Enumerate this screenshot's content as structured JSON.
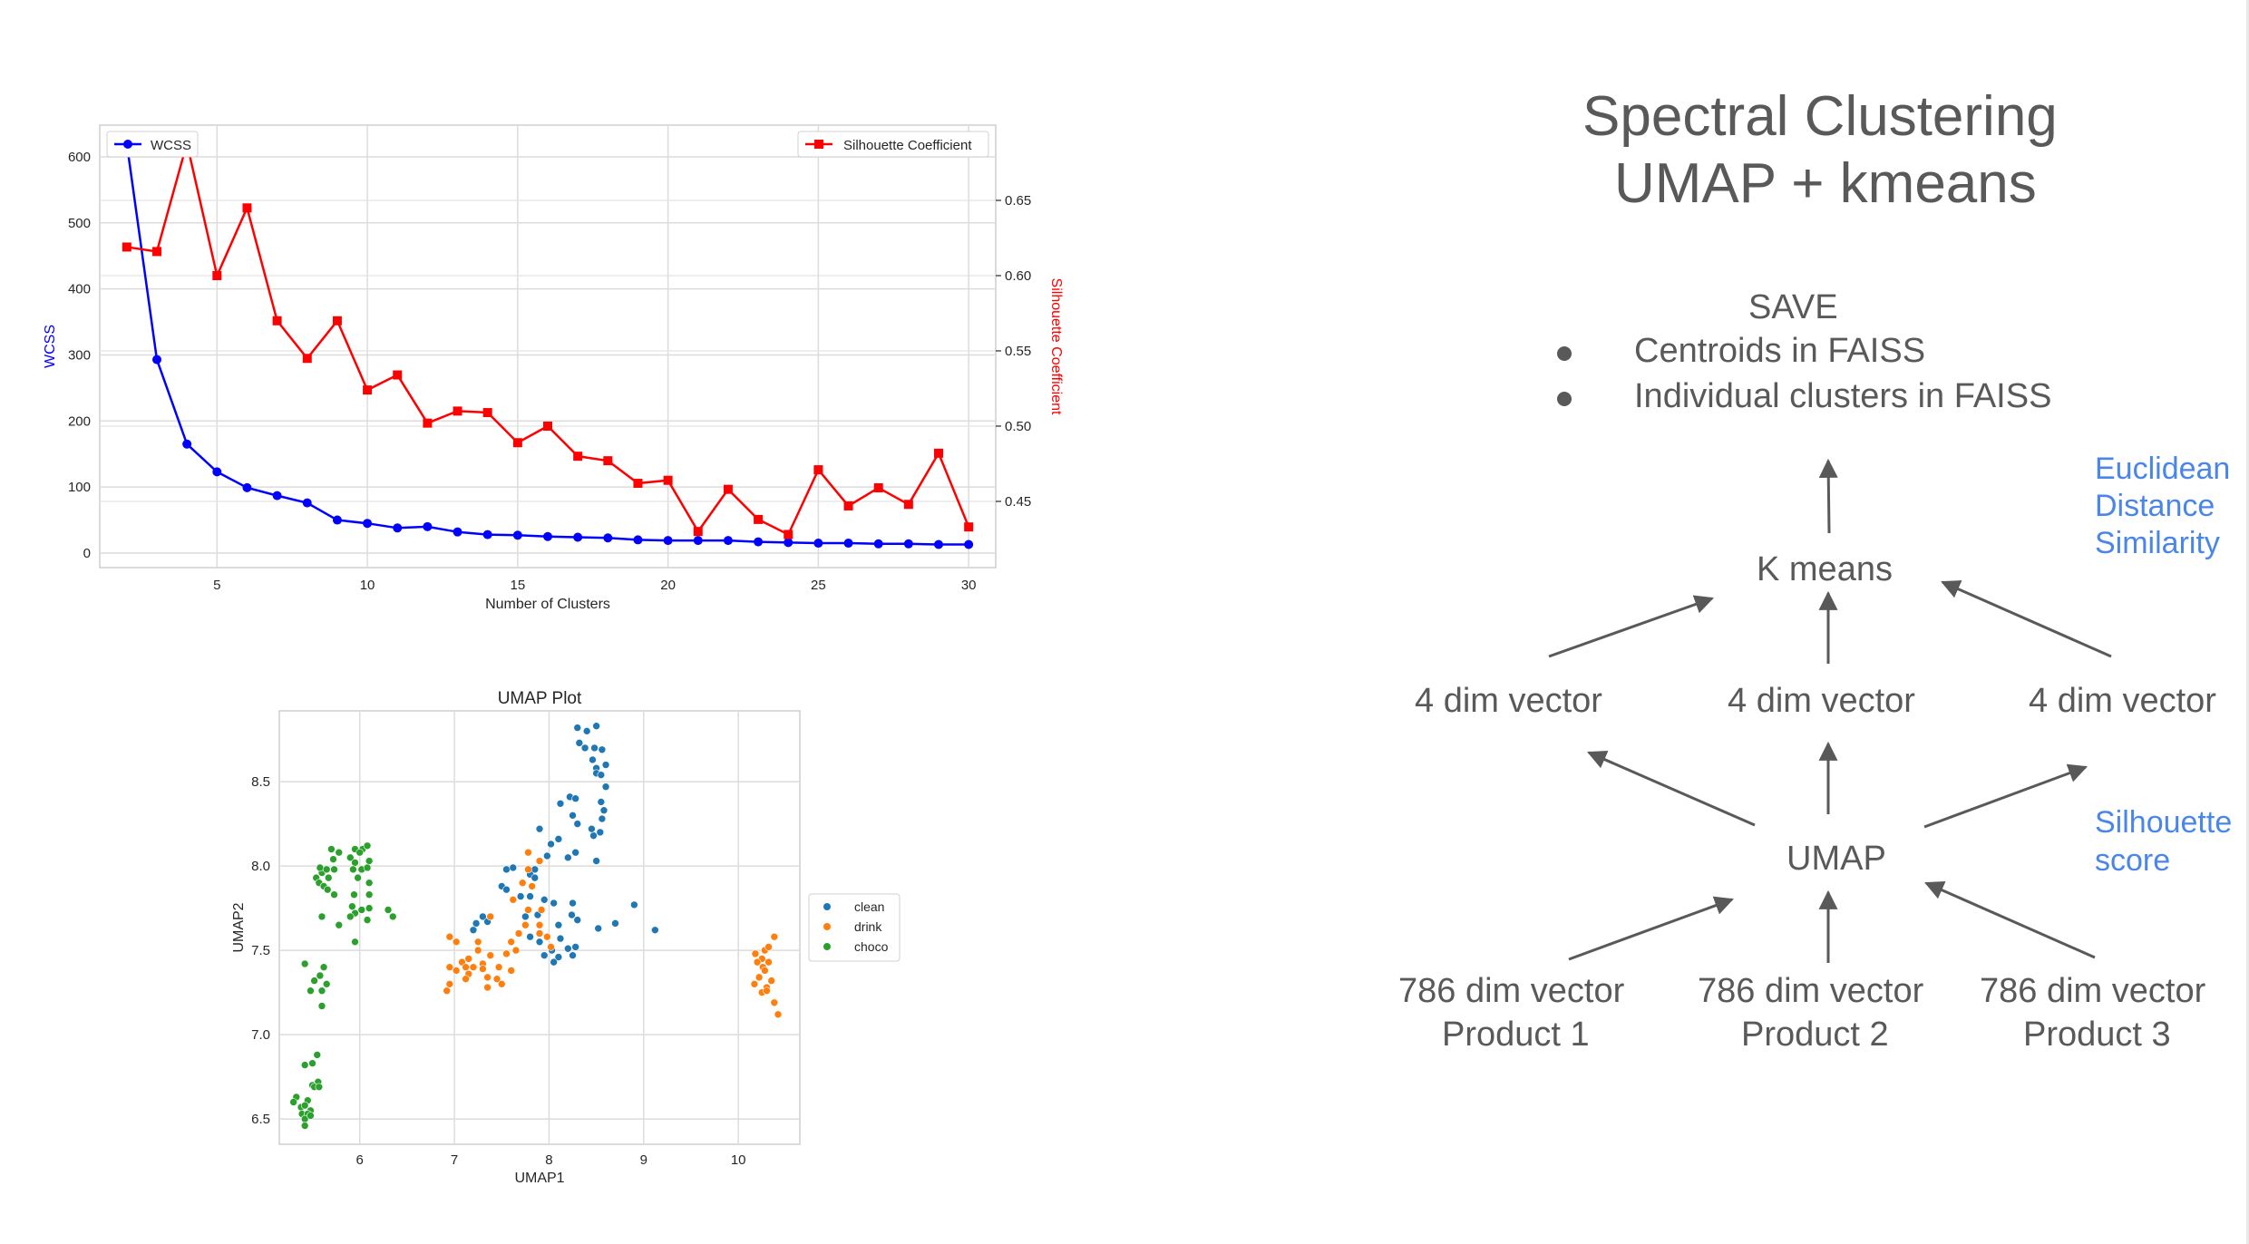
{
  "chart_data": [
    {
      "type": "line",
      "xlabel": "Number of Clusters",
      "ylabel": "WCSS",
      "ylabel_right": "Silhouette Coefficient",
      "xlim": [
        1.1,
        30.9
      ],
      "ylim": [
        -22,
        648
      ],
      "ylim_right": [
        0.406,
        0.7
      ],
      "x_ticks": [
        5,
        10,
        15,
        20,
        25,
        30
      ],
      "y_ticks": [
        0,
        100,
        200,
        300,
        400,
        500,
        600
      ],
      "y_ticks_right": [
        0.45,
        0.5,
        0.55,
        0.6,
        0.65
      ],
      "grid": true,
      "series": [
        {
          "name": "WCSS",
          "axis": "left",
          "color": "#0000ff",
          "marker": "circle",
          "legend_position": "upper-left",
          "x": [
            2,
            3,
            4,
            5,
            6,
            7,
            8,
            9,
            10,
            11,
            12,
            13,
            14,
            15,
            16,
            17,
            18,
            19,
            20,
            21,
            22,
            23,
            24,
            25,
            26,
            27,
            28,
            29,
            30
          ],
          "values": [
            620,
            293,
            165,
            123,
            99,
            87,
            76,
            50,
            45,
            38,
            40,
            32,
            28,
            27,
            25,
            24,
            23,
            20,
            19,
            19,
            19,
            17,
            16,
            15,
            15,
            14,
            14,
            13,
            13
          ]
        },
        {
          "name": "Silhouette Coefficient",
          "axis": "right",
          "color": "#ff0000",
          "marker": "square",
          "legend_position": "upper-right",
          "x": [
            2,
            3,
            4,
            5,
            6,
            7,
            8,
            9,
            10,
            11,
            12,
            13,
            14,
            15,
            16,
            17,
            18,
            19,
            20,
            21,
            22,
            23,
            24,
            25,
            26,
            27,
            28,
            29,
            30
          ],
          "values": [
            0.619,
            0.616,
            0.688,
            0.6,
            0.645,
            0.57,
            0.545,
            0.57,
            0.524,
            0.534,
            0.502,
            0.51,
            0.509,
            0.489,
            0.5,
            0.48,
            0.477,
            0.462,
            0.464,
            0.43,
            0.458,
            0.438,
            0.428,
            0.471,
            0.447,
            0.459,
            0.448,
            0.482,
            0.433
          ]
        }
      ]
    },
    {
      "type": "scatter",
      "title": "UMAP Plot",
      "xlabel": "UMAP1",
      "ylabel": "UMAP2",
      "xlim": [
        5.15,
        10.65
      ],
      "ylim": [
        6.35,
        8.92
      ],
      "x_ticks": [
        6,
        7,
        8,
        9,
        10
      ],
      "y_ticks": [
        6.5,
        7.0,
        7.5,
        8.0,
        8.5
      ],
      "grid": true,
      "legend_position": "right",
      "series": [
        {
          "name": "clean",
          "color": "#1f77b4",
          "points": [
            [
              8.3,
              8.82
            ],
            [
              8.4,
              8.8
            ],
            [
              8.5,
              8.83
            ],
            [
              8.32,
              8.73
            ],
            [
              8.38,
              8.7
            ],
            [
              8.48,
              8.7
            ],
            [
              8.56,
              8.69
            ],
            [
              8.46,
              8.63
            ],
            [
              8.5,
              8.58
            ],
            [
              8.6,
              8.6
            ],
            [
              8.5,
              8.55
            ],
            [
              8.55,
              8.54
            ],
            [
              8.6,
              8.47
            ],
            [
              8.55,
              8.38
            ],
            [
              8.58,
              8.33
            ],
            [
              8.56,
              8.28
            ],
            [
              8.22,
              8.41
            ],
            [
              8.28,
              8.4
            ],
            [
              8.12,
              8.37
            ],
            [
              8.25,
              8.3
            ],
            [
              8.3,
              8.25
            ],
            [
              8.47,
              8.18
            ],
            [
              8.45,
              8.22
            ],
            [
              8.54,
              8.2
            ],
            [
              8.02,
              8.13
            ],
            [
              8.1,
              8.16
            ],
            [
              7.9,
              8.22
            ],
            [
              8.2,
              8.05
            ],
            [
              8.28,
              8.08
            ],
            [
              8.5,
              8.03
            ],
            [
              7.98,
              8.06
            ],
            [
              7.85,
              7.98
            ],
            [
              7.55,
              7.98
            ],
            [
              7.62,
              7.99
            ],
            [
              7.8,
              7.95
            ],
            [
              7.85,
              7.93
            ],
            [
              7.5,
              7.88
            ],
            [
              7.55,
              7.86
            ],
            [
              7.7,
              7.82
            ],
            [
              7.8,
              7.82
            ],
            [
              7.95,
              7.8
            ],
            [
              8.05,
              7.78
            ],
            [
              8.25,
              7.78
            ],
            [
              7.75,
              7.7
            ],
            [
              7.88,
              7.71
            ],
            [
              8.1,
              7.65
            ],
            [
              8.24,
              7.71
            ],
            [
              8.3,
              7.68
            ],
            [
              8.52,
              7.63
            ],
            [
              7.3,
              7.7
            ],
            [
              7.23,
              7.66
            ],
            [
              7.35,
              7.67
            ],
            [
              7.2,
              7.62
            ],
            [
              7.8,
              7.58
            ],
            [
              7.9,
              7.55
            ],
            [
              8.12,
              7.57
            ],
            [
              8.03,
              7.5
            ],
            [
              7.95,
              7.47
            ],
            [
              8.2,
              7.51
            ],
            [
              8.28,
              7.52
            ],
            [
              8.1,
              7.46
            ],
            [
              8.05,
              7.43
            ],
            [
              8.25,
              7.47
            ],
            [
              8.7,
              7.66
            ],
            [
              8.9,
              7.77
            ],
            [
              9.12,
              7.62
            ]
          ]
        },
        {
          "name": "drink",
          "color": "#ff7f0e",
          "points": [
            [
              7.78,
              8.08
            ],
            [
              7.78,
              7.98
            ],
            [
              7.9,
              8.03
            ],
            [
              7.72,
              7.9
            ],
            [
              7.82,
              7.88
            ],
            [
              7.62,
              7.8
            ],
            [
              7.38,
              7.7
            ],
            [
              7.78,
              7.74
            ],
            [
              7.92,
              7.74
            ],
            [
              7.75,
              7.65
            ],
            [
              7.68,
              7.6
            ],
            [
              7.9,
              7.6
            ],
            [
              7.02,
              7.55
            ],
            [
              6.95,
              7.58
            ],
            [
              7.25,
              7.55
            ],
            [
              7.6,
              7.55
            ],
            [
              7.9,
              7.65
            ],
            [
              7.98,
              7.58
            ],
            [
              7.25,
              7.5
            ],
            [
              7.55,
              7.48
            ],
            [
              7.65,
              7.5
            ],
            [
              8.02,
              7.52
            ],
            [
              7.15,
              7.45
            ],
            [
              7.38,
              7.47
            ],
            [
              7.08,
              7.43
            ],
            [
              7.12,
              7.4
            ],
            [
              7.2,
              7.4
            ],
            [
              7.3,
              7.42
            ],
            [
              6.95,
              7.4
            ],
            [
              7.02,
              7.38
            ],
            [
              7.3,
              7.39
            ],
            [
              7.47,
              7.4
            ],
            [
              7.6,
              7.38
            ],
            [
              7.15,
              7.36
            ],
            [
              7.35,
              7.34
            ],
            [
              7.45,
              7.33
            ],
            [
              6.95,
              7.3
            ],
            [
              7.12,
              7.33
            ],
            [
              7.35,
              7.28
            ],
            [
              7.5,
              7.3
            ],
            [
              6.92,
              7.26
            ],
            [
              10.38,
              7.58
            ],
            [
              10.28,
              7.5
            ],
            [
              10.32,
              7.52
            ],
            [
              10.18,
              7.48
            ],
            [
              10.25,
              7.45
            ],
            [
              10.32,
              7.43
            ],
            [
              10.2,
              7.43
            ],
            [
              10.26,
              7.4
            ],
            [
              10.22,
              7.34
            ],
            [
              10.28,
              7.38
            ],
            [
              10.17,
              7.3
            ],
            [
              10.3,
              7.28
            ],
            [
              10.35,
              7.32
            ],
            [
              10.25,
              7.25
            ],
            [
              10.3,
              7.26
            ],
            [
              10.38,
              7.19
            ],
            [
              10.42,
              7.12
            ]
          ]
        },
        {
          "name": "choco",
          "color": "#2ca02c",
          "points": [
            [
              5.7,
              8.1
            ],
            [
              5.78,
              8.08
            ],
            [
              5.95,
              8.1
            ],
            [
              6.03,
              8.1
            ],
            [
              6.08,
              8.12
            ],
            [
              5.72,
              8.04
            ],
            [
              5.6,
              7.96
            ],
            [
              5.58,
              7.99
            ],
            [
              5.65,
              7.98
            ],
            [
              5.73,
              7.98
            ],
            [
              5.9,
              8.05
            ],
            [
              5.95,
              8.02
            ],
            [
              6.0,
              8.08
            ],
            [
              6.1,
              8.03
            ],
            [
              5.93,
              7.98
            ],
            [
              6.02,
              7.98
            ],
            [
              6.08,
              7.99
            ],
            [
              5.54,
              7.93
            ],
            [
              5.57,
              7.9
            ],
            [
              5.67,
              7.93
            ],
            [
              5.98,
              7.93
            ],
            [
              6.1,
              7.9
            ],
            [
              5.62,
              7.88
            ],
            [
              5.66,
              7.86
            ],
            [
              5.73,
              7.83
            ],
            [
              5.94,
              7.83
            ],
            [
              6.1,
              7.83
            ],
            [
              5.92,
              7.76
            ],
            [
              6.02,
              7.74
            ],
            [
              6.1,
              7.75
            ],
            [
              5.95,
              7.72
            ],
            [
              5.6,
              7.7
            ],
            [
              5.9,
              7.7
            ],
            [
              6.08,
              7.68
            ],
            [
              6.3,
              7.74
            ],
            [
              6.35,
              7.7
            ],
            [
              5.78,
              7.65
            ],
            [
              5.95,
              7.55
            ],
            [
              5.42,
              7.42
            ],
            [
              5.62,
              7.4
            ],
            [
              5.58,
              7.35
            ],
            [
              5.52,
              7.32
            ],
            [
              5.65,
              7.3
            ],
            [
              5.6,
              7.26
            ],
            [
              5.48,
              7.26
            ],
            [
              5.6,
              7.17
            ],
            [
              5.42,
              6.82
            ],
            [
              5.5,
              6.83
            ],
            [
              5.55,
              6.88
            ],
            [
              5.56,
              6.72
            ],
            [
              5.5,
              6.7
            ],
            [
              5.52,
              6.69
            ],
            [
              5.57,
              6.69
            ],
            [
              5.33,
              6.63
            ],
            [
              5.3,
              6.6
            ],
            [
              5.45,
              6.61
            ],
            [
              5.38,
              6.57
            ],
            [
              5.42,
              6.58
            ],
            [
              5.48,
              6.55
            ],
            [
              5.39,
              6.53
            ],
            [
              5.45,
              6.53
            ],
            [
              5.42,
              6.5
            ],
            [
              5.48,
              6.52
            ],
            [
              5.42,
              6.46
            ]
          ]
        }
      ]
    }
  ],
  "diagram": {
    "title_line1": "Spectral Clustering",
    "title_line2": "UMAP + kmeans",
    "save_heading": "SAVE",
    "save_items": [
      "Centroids in FAISS",
      "Individual clusters in FAISS"
    ],
    "kmeans_label": "K means",
    "vector4_labels": [
      "4 dim vector",
      "4 dim vector",
      "4 dim vector"
    ],
    "umap_label": "UMAP",
    "products": [
      {
        "line1": "786 dim vector",
        "line2": "Product 1"
      },
      {
        "line1": "786 dim vector",
        "line2": "Product 2"
      },
      {
        "line1": "786 dim vector",
        "line2": "Product 3"
      }
    ],
    "note_euclidean": [
      "Euclidean",
      "Distance",
      "Similarity"
    ],
    "note_silhouette": [
      "Silhouette",
      "score"
    ],
    "text_color": "#595959",
    "note_color": "#4a86e8"
  }
}
